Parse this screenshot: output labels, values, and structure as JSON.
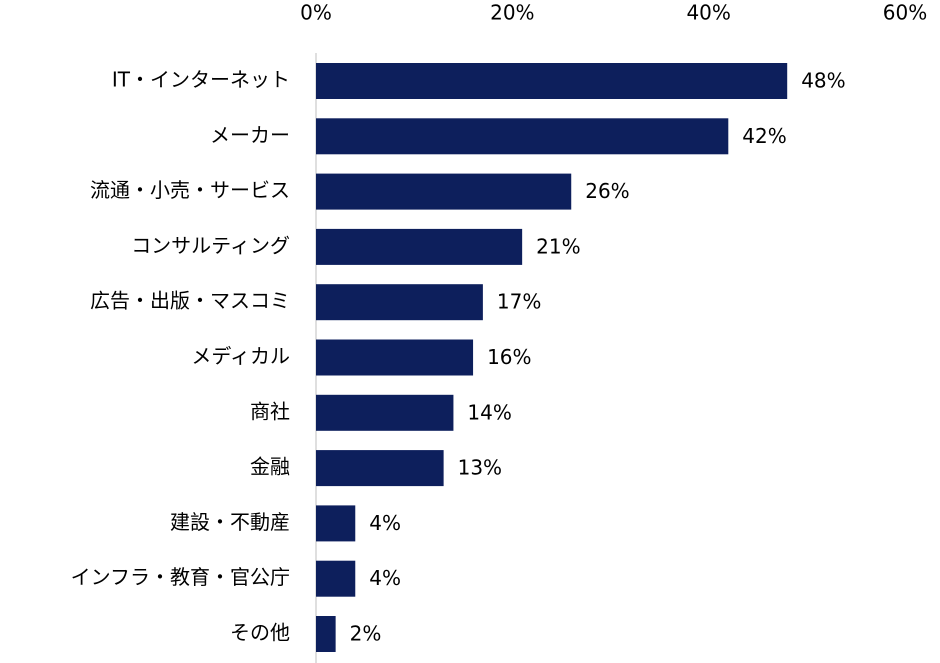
{
  "chart_data": {
    "type": "bar",
    "orientation": "horizontal",
    "categories": [
      "IT・インターネット",
      "メーカー",
      "流通・小売・サービス",
      "コンサルティング",
      "広告・出版・マスコミ",
      "メディカル",
      "商社",
      "金融",
      "建設・不動産",
      "インフラ・教育・官公庁",
      "その他"
    ],
    "values": [
      48,
      42,
      26,
      21,
      17,
      16,
      14,
      13,
      4,
      4,
      2
    ],
    "value_labels": [
      "48%",
      "42%",
      "26%",
      "21%",
      "17%",
      "16%",
      "14%",
      "13%",
      "4%",
      "4%",
      "2%"
    ],
    "color": "#0d1f5c",
    "xlim": [
      0,
      60
    ],
    "xticks": [
      {
        "value": 0,
        "label": "0%"
      },
      {
        "value": 20,
        "label": "20%"
      },
      {
        "value": 40,
        "label": "40%"
      },
      {
        "value": 60,
        "label": "60%"
      }
    ],
    "grid": false
  }
}
